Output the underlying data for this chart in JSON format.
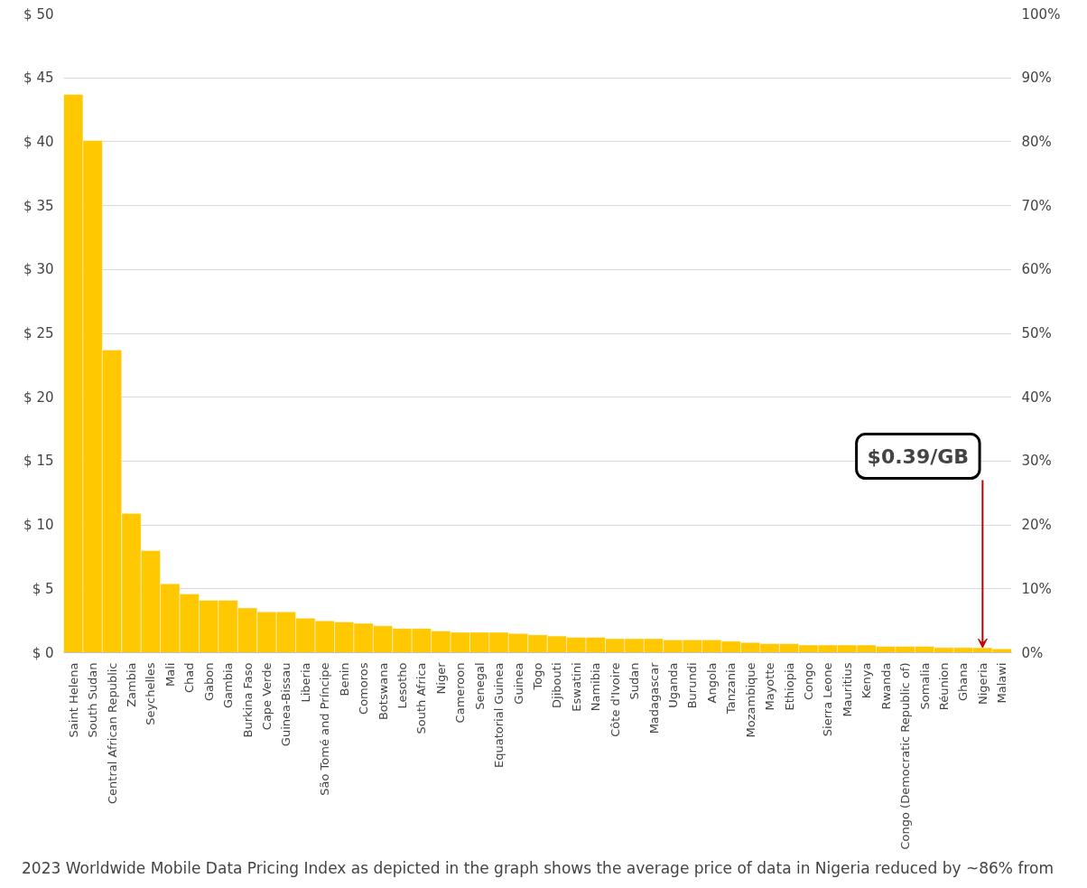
{
  "chart_data": {
    "type": "bar",
    "categories": [
      "Saint Helena",
      "South Sudan",
      "Central African Republic",
      "Zambia",
      "Seychelles",
      "Mali",
      "Chad",
      "Gabon",
      "Gambia",
      "Burkina Faso",
      "Cape Verde",
      "Guinea-Bissau",
      "Liberia",
      "São Tomé and Príncipe",
      "Benin",
      "Comoros",
      "Botswana",
      "Lesotho",
      "South Africa",
      "Niger",
      "Cameroon",
      "Senegal",
      "Equatorial Guinea",
      "Guinea",
      "Togo",
      "Djibouti",
      "Eswatini",
      "Namibia",
      "Côte d'Ivoire",
      "Sudan",
      "Madagascar",
      "Uganda",
      "Burundi",
      "Angola",
      "Tanzania",
      "Mozambique",
      "Mayotte",
      "Ethiopia",
      "Congo",
      "Sierra Leone",
      "Mauritius",
      "Kenya",
      "Rwanda",
      "Congo (Democratic Republic of)",
      "Somalia",
      "Réunion",
      "Ghana",
      "Nigeria",
      "Malawi"
    ],
    "values": [
      43.7,
      40.1,
      23.7,
      10.9,
      8.0,
      5.4,
      4.6,
      4.1,
      4.1,
      3.5,
      3.2,
      3.2,
      2.7,
      2.5,
      2.4,
      2.3,
      2.1,
      1.9,
      1.9,
      1.7,
      1.6,
      1.6,
      1.6,
      1.5,
      1.4,
      1.3,
      1.2,
      1.2,
      1.1,
      1.1,
      1.1,
      1.0,
      1.0,
      1.0,
      0.9,
      0.8,
      0.7,
      0.7,
      0.6,
      0.6,
      0.6,
      0.6,
      0.5,
      0.5,
      0.5,
      0.4,
      0.4,
      0.39,
      0.3
    ],
    "color": "#ffc800",
    "ylim": [
      0,
      50
    ],
    "yticks": [
      {
        "value": 0,
        "label": "$ 0"
      },
      {
        "value": 5,
        "label": "$ 5"
      },
      {
        "value": 10,
        "label": "$ 10"
      },
      {
        "value": 15,
        "label": "$ 15"
      },
      {
        "value": 20,
        "label": "$ 20"
      },
      {
        "value": 25,
        "label": "$ 25"
      },
      {
        "value": 30,
        "label": "$ 30"
      },
      {
        "value": 35,
        "label": "$ 35"
      },
      {
        "value": 40,
        "label": "$ 40"
      },
      {
        "value": 45,
        "label": "$ 45"
      },
      {
        "value": 50,
        "label": "$ 50"
      }
    ],
    "y2lim": [
      0,
      100
    ],
    "y2ticks": [
      {
        "value": 0,
        "label": "0%"
      },
      {
        "value": 10,
        "label": "10%"
      },
      {
        "value": 20,
        "label": "20%"
      },
      {
        "value": 30,
        "label": "30%"
      },
      {
        "value": 40,
        "label": "40%"
      },
      {
        "value": 50,
        "label": "50%"
      },
      {
        "value": 60,
        "label": "60%"
      },
      {
        "value": 70,
        "label": "70%"
      },
      {
        "value": 80,
        "label": "80%"
      },
      {
        "value": 90,
        "label": "90%"
      },
      {
        "value": 100,
        "label": "100%"
      }
    ],
    "grid": "y",
    "annotations": [
      {
        "text": "$0.39/GB",
        "x": "Nigeria",
        "y": 0.39
      },
      "2023 Worldwide Mobile Data Pricing Index as depicted in the graph shows the average price of data in Nigeria reduced by ~86% from"
    ]
  }
}
